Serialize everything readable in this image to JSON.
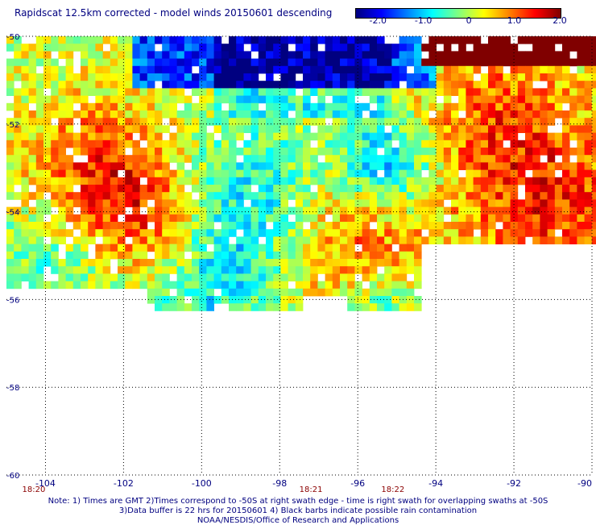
{
  "title": "Rapidscat 12.5km corrected - model winds 20150601 descending",
  "colorbar": {
    "colors": [
      "#00007f",
      "#0000ff",
      "#0080ff",
      "#00ffff",
      "#80ff80",
      "#ffff00",
      "#ff8000",
      "#ff0000",
      "#7f0000"
    ],
    "ticks": [
      {
        "label": "-2.0",
        "v": -2.0
      },
      {
        "label": "-1.0",
        "v": -1.0
      },
      {
        "label": "0",
        "v": 0
      },
      {
        "label": "1.0",
        "v": 1.0
      },
      {
        "label": "2.0",
        "v": 2.0
      }
    ],
    "min": -2.5,
    "max": 2.0
  },
  "map": {
    "lon_range": [
      -105,
      -90
    ],
    "lat_range": [
      -50,
      -60
    ],
    "lon_ticks": [
      {
        "label": "-104",
        "v": -104
      },
      {
        "label": "-102",
        "v": -102
      },
      {
        "label": "-100",
        "v": -100
      },
      {
        "label": "-98",
        "v": -98
      },
      {
        "label": "-96",
        "v": -96
      },
      {
        "label": "-94",
        "v": -94
      },
      {
        "label": "-92",
        "v": -92
      },
      {
        "label": "-90",
        "v": -90
      }
    ],
    "lat_ticks": [
      {
        "label": "-50",
        "v": -50
      },
      {
        "label": "-52",
        "v": -52
      },
      {
        "label": "-54",
        "v": -54
      },
      {
        "label": "-56",
        "v": -56
      },
      {
        "label": "-58",
        "v": -58
      },
      {
        "label": "-60",
        "v": -60
      }
    ],
    "times": [
      {
        "label": "18:20",
        "lon": -104.3
      },
      {
        "label": "18:21",
        "lon": -97.2
      },
      {
        "label": "18:22",
        "lon": -95.1
      }
    ],
    "time_color": "#8b0000",
    "axis_color": "#000080"
  },
  "notes": {
    "line1": "Note: 1) Times are GMT 2)Times correspond to -50S at right swath edge - time is right swath for overlapping swaths at -50S",
    "line2": "3)Data buffer is 22 hrs for 20150601 4) Black barbs indicate possible rain contamination",
    "line3": "NOAA/NESDIS/Office of Research and Applications"
  }
}
